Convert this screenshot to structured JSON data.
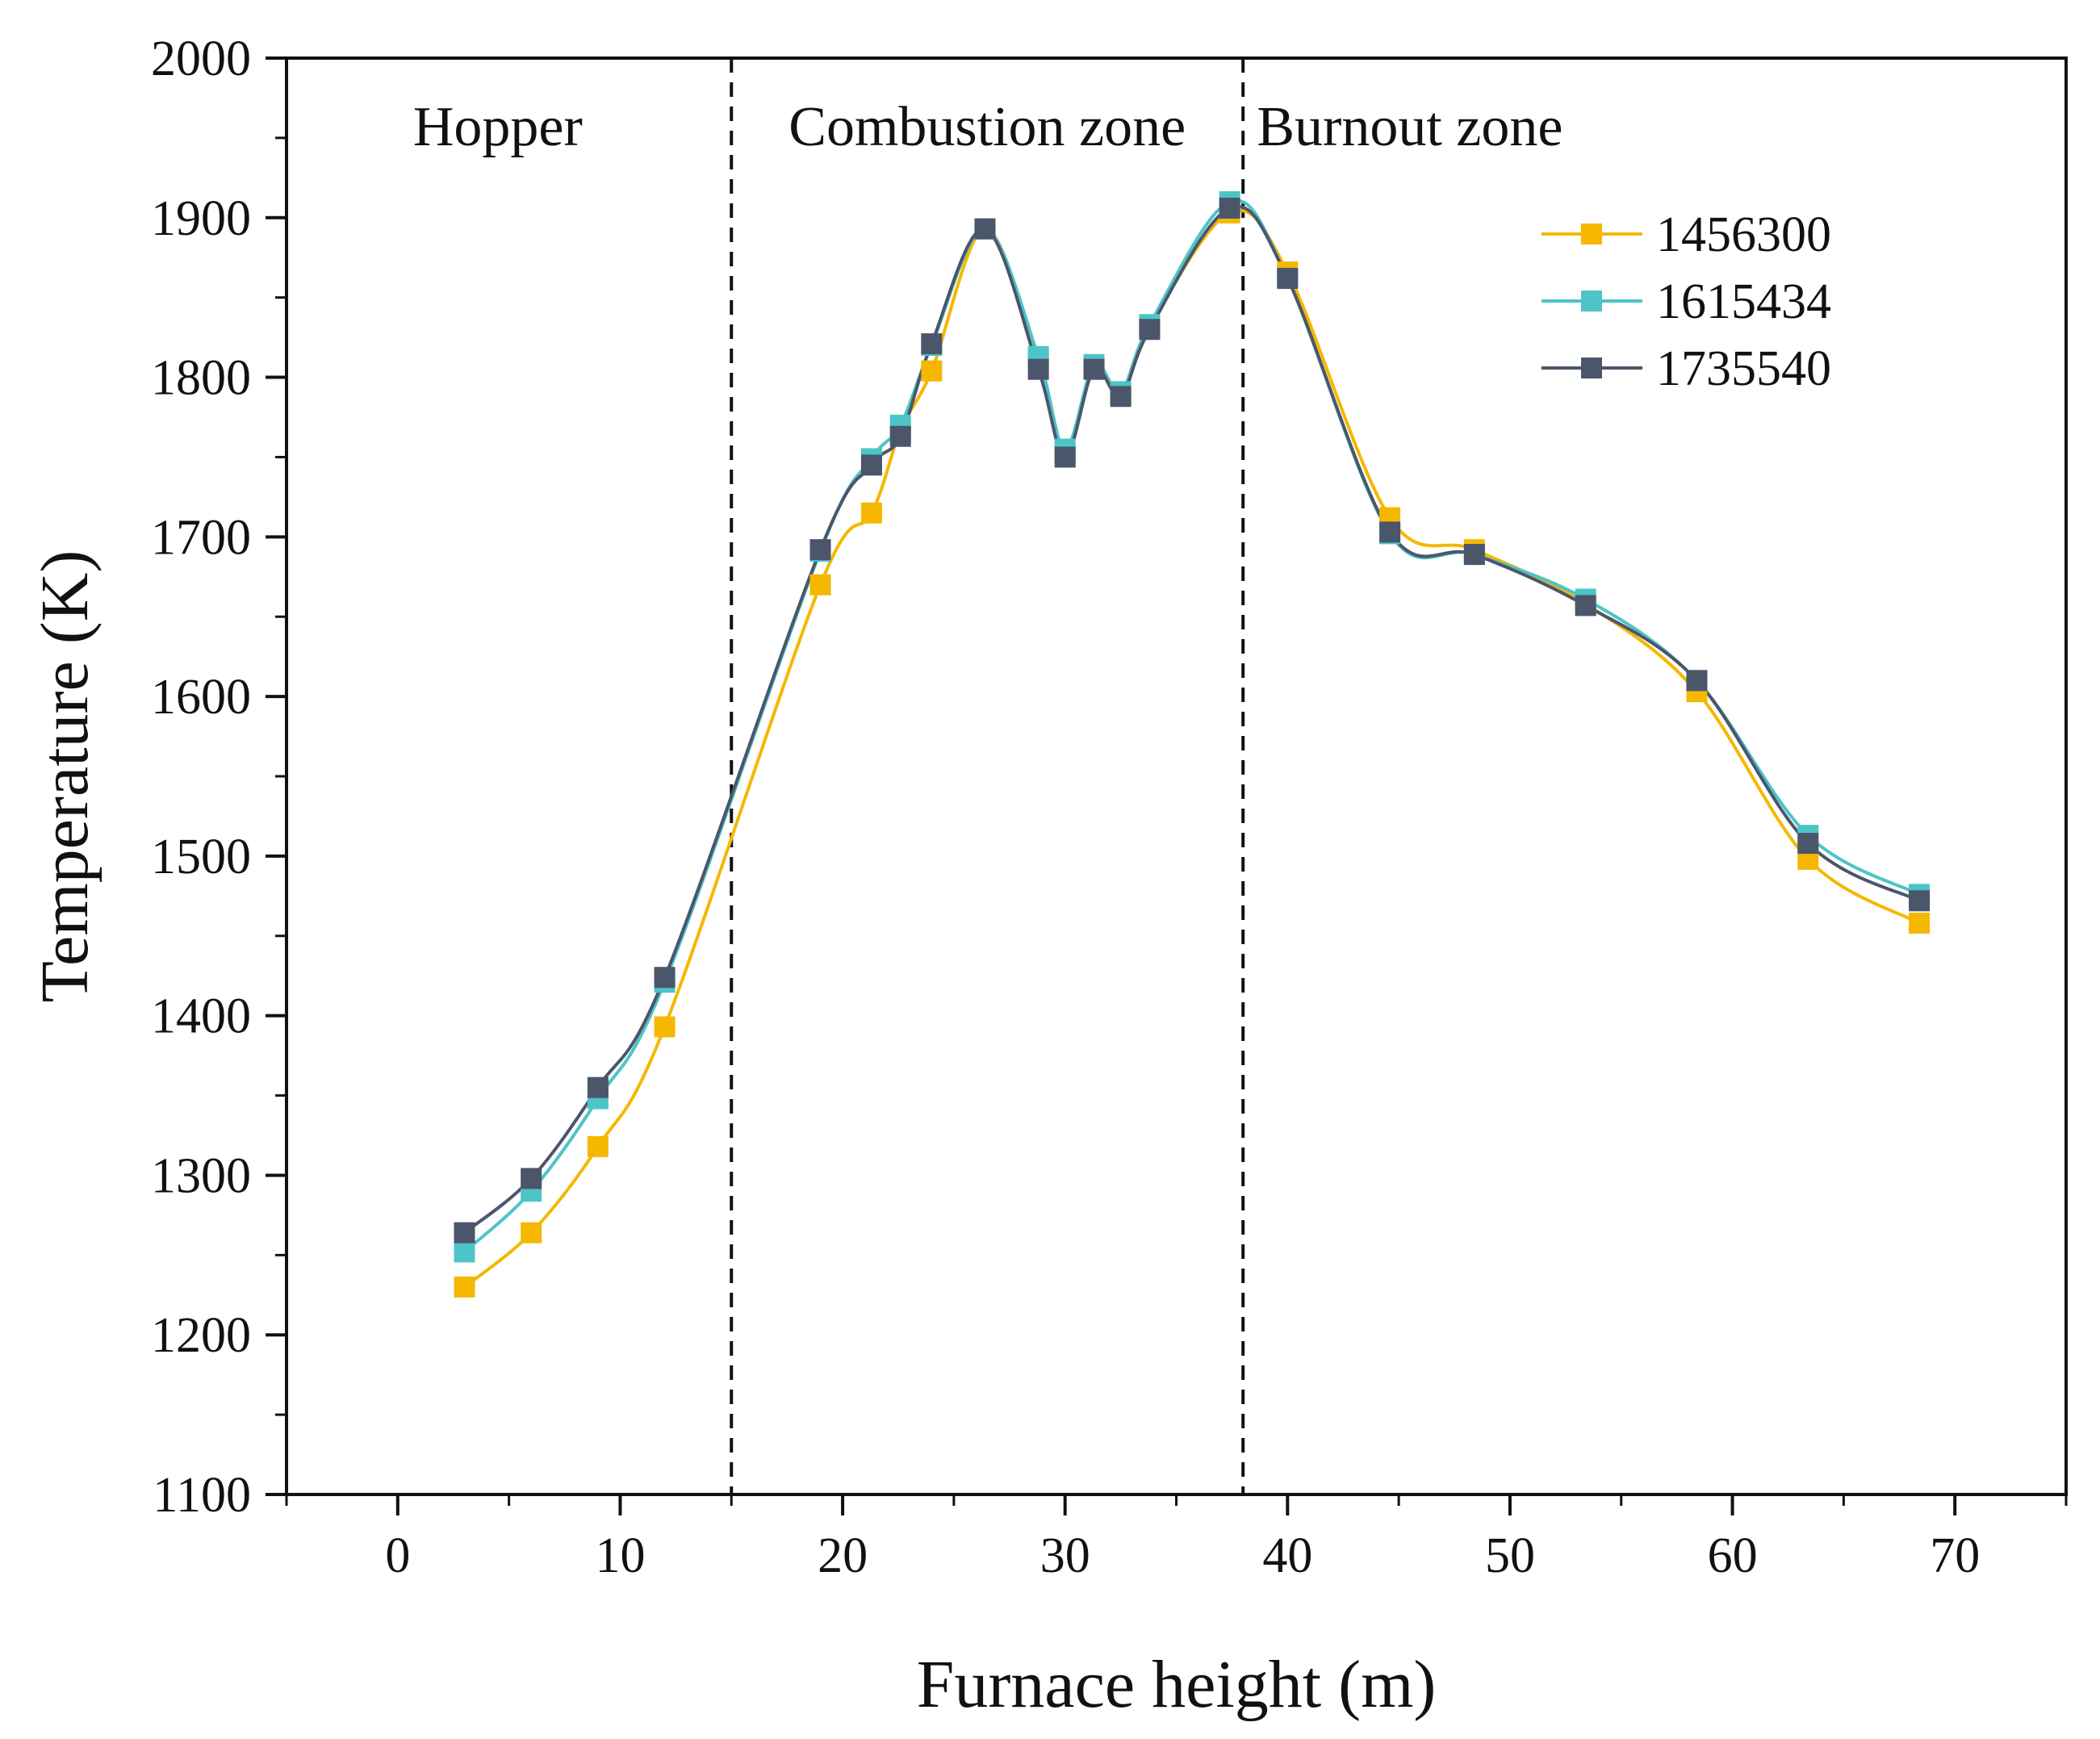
{
  "chart_data": {
    "type": "line",
    "title": "",
    "xlabel": "Furnace height (m)",
    "ylabel": "Temperature (K)",
    "xlim": [
      -5,
      75
    ],
    "ylim": [
      1100,
      2000
    ],
    "xticks": [
      0,
      10,
      20,
      30,
      40,
      50,
      60,
      70
    ],
    "yticks": [
      1100,
      1200,
      1300,
      1400,
      1500,
      1600,
      1700,
      1800,
      1900,
      2000
    ],
    "grid": false,
    "legend_position": "top-right",
    "zones": [
      {
        "label": "Hopper",
        "x_start": -5,
        "x_end": 15
      },
      {
        "label": "Combustion zone",
        "x_start": 15,
        "x_end": 38
      },
      {
        "label": "Burnout zone",
        "x_start": 38,
        "x_end": 75
      }
    ],
    "zone_boundaries": [
      15,
      38
    ],
    "x": [
      3,
      6,
      9,
      12,
      19,
      21.3,
      22.6,
      24,
      26.4,
      28.8,
      30,
      31.3,
      32.5,
      33.8,
      37.4,
      40,
      44.6,
      48.4,
      53.4,
      58.4,
      63.4,
      68.4
    ],
    "series": [
      {
        "name": "1456300",
        "color": "#f5b700",
        "values": [
          1230,
          1264,
          1318,
          1393,
          1670,
          1715,
          1767,
          1804,
          1893,
          1810,
          1752,
          1806,
          1790,
          1832,
          1903,
          1866,
          1712,
          1692,
          1658,
          1603,
          1498,
          1458
        ]
      },
      {
        "name": "1615434",
        "color": "#4dc4c8",
        "values": [
          1252,
          1290,
          1348,
          1421,
          1691,
          1749,
          1770,
          1820,
          1893,
          1813,
          1755,
          1808,
          1791,
          1833,
          1910,
          1862,
          1702,
          1689,
          1661,
          1610,
          1513,
          1476
        ]
      },
      {
        "name": "1735540",
        "color": "#4b566b",
        "values": [
          1264,
          1298,
          1355,
          1424,
          1692,
          1745,
          1763,
          1821,
          1893,
          1805,
          1750,
          1805,
          1788,
          1830,
          1906,
          1862,
          1703,
          1689,
          1657,
          1610,
          1508,
          1472
        ]
      }
    ]
  }
}
